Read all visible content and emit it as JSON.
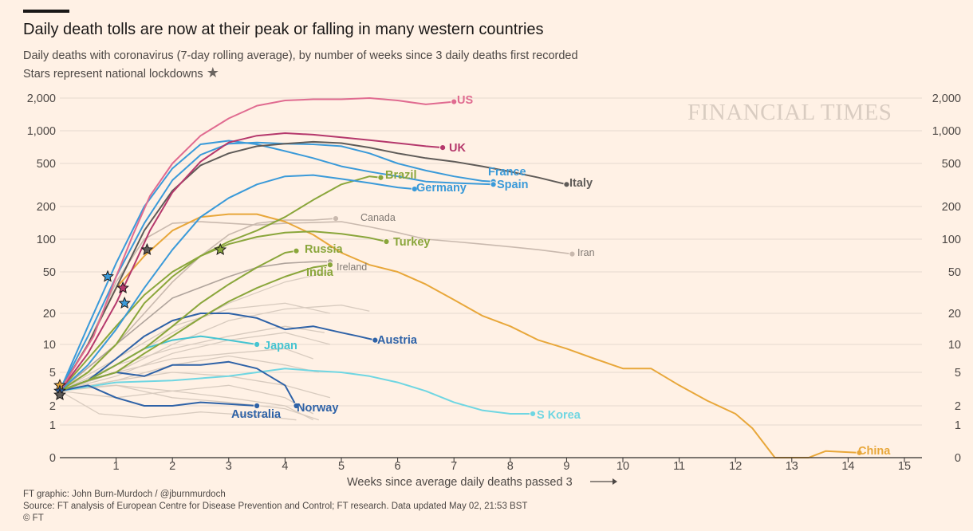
{
  "title": "Daily death tolls are now at their peak or falling in many western countries",
  "subtitle": "Daily deaths with coronavirus (7-day rolling average), by number of weeks since 3 daily deaths first recorded",
  "lockdown_note": "Stars represent national lockdowns",
  "star_glyph": "★",
  "watermark": "FINANCIAL TIMES",
  "footer": {
    "credit": "FT graphic: John Burn-Murdoch / @jburnmurdoch",
    "source": "Source: FT analysis of European Centre for Disease Prevention and Control; FT research. Data updated May 02, 21:53 BST",
    "copyright": "© FT"
  },
  "colors": {
    "background": "#fff1e5",
    "grid": "#e6d9ce",
    "us": "#e06b90",
    "uk": "#b5386c",
    "france": "#3a9ad9",
    "spain": "#3a9ad9",
    "germany": "#3a9ad9",
    "italy": "#5f5b58",
    "brazil": "#8aa63b",
    "turkey": "#8aa63b",
    "russia": "#8aa63b",
    "india": "#8aa63b",
    "canada": "#c9b9ae",
    "iran": "#c9b9ae",
    "ireland": "#b0a49c",
    "austria": "#2e62a7",
    "australia": "#2e62a7",
    "norway": "#2e62a7",
    "japan": "#45c4d1",
    "s_korea": "#6fd6e2",
    "china": "#e8a73a",
    "others": "#d8cbbf"
  },
  "chart_data": {
    "type": "line",
    "title": "",
    "xlabel": "Weeks since average daily deaths passed 3",
    "ylabel": "",
    "yscale": "log",
    "xlim": [
      0,
      15.6
    ],
    "xticks": [
      "1",
      "2",
      "3",
      "4",
      "5",
      "6",
      "7",
      "8",
      "9",
      "10",
      "11",
      "12",
      "13",
      "14",
      "15"
    ],
    "yticks": [
      "0",
      "1",
      "2",
      "5",
      "10",
      "20",
      "50",
      "100",
      "200",
      "500",
      "1,000",
      "2,000"
    ],
    "ytick_values": [
      0,
      1,
      2,
      5,
      10,
      20,
      50,
      100,
      200,
      500,
      1000,
      2000
    ],
    "grid": "horizontal",
    "series": [
      {
        "name": "US",
        "key": "us",
        "label_style": "big",
        "points": [
          [
            0,
            3
          ],
          [
            0.6,
            12
          ],
          [
            1,
            45
          ],
          [
            1.3,
            110
          ],
          [
            1.6,
            250
          ],
          [
            2,
            500
          ],
          [
            2.5,
            900
          ],
          [
            3,
            1300
          ],
          [
            3.5,
            1700
          ],
          [
            4,
            1900
          ],
          [
            4.5,
            1950
          ],
          [
            5,
            1950
          ],
          [
            5.5,
            2000
          ],
          [
            6,
            1900
          ],
          [
            6.5,
            1750
          ],
          [
            7,
            1850
          ]
        ]
      },
      {
        "name": "UK",
        "key": "uk",
        "label_style": "big",
        "points": [
          [
            0,
            3
          ],
          [
            0.5,
            8
          ],
          [
            1,
            25
          ],
          [
            1.3,
            55
          ],
          [
            1.6,
            120
          ],
          [
            2,
            270
          ],
          [
            2.5,
            520
          ],
          [
            3,
            780
          ],
          [
            3.5,
            900
          ],
          [
            4,
            950
          ],
          [
            4.5,
            920
          ],
          [
            5,
            870
          ],
          [
            5.5,
            820
          ],
          [
            6,
            770
          ],
          [
            6.5,
            720
          ],
          [
            6.8,
            700
          ]
        ]
      },
      {
        "name": "France",
        "key": "france",
        "label_style": "big",
        "points": [
          [
            0,
            3
          ],
          [
            0.5,
            12
          ],
          [
            1,
            45
          ],
          [
            1.5,
            140
          ],
          [
            2,
            350
          ],
          [
            2.5,
            600
          ],
          [
            3,
            760
          ],
          [
            3.5,
            780
          ],
          [
            4,
            760
          ],
          [
            4.5,
            750
          ],
          [
            5,
            720
          ],
          [
            5.5,
            620
          ],
          [
            6,
            500
          ],
          [
            6.5,
            430
          ],
          [
            7,
            380
          ],
          [
            7.5,
            345
          ],
          [
            7.7,
            340
          ]
        ]
      },
      {
        "name": "Spain",
        "key": "spain",
        "label_style": "big",
        "points": [
          [
            0,
            3
          ],
          [
            0.5,
            15
          ],
          [
            1,
            60
          ],
          [
            1.5,
            200
          ],
          [
            2,
            450
          ],
          [
            2.5,
            750
          ],
          [
            3,
            810
          ],
          [
            3.5,
            750
          ],
          [
            4,
            650
          ],
          [
            4.5,
            560
          ],
          [
            5,
            470
          ],
          [
            5.5,
            420
          ],
          [
            6,
            380
          ],
          [
            6.5,
            340
          ],
          [
            7,
            330
          ],
          [
            7.7,
            320
          ]
        ]
      },
      {
        "name": "Germany",
        "key": "germany",
        "label_style": "big",
        "points": [
          [
            0,
            3
          ],
          [
            0.5,
            6
          ],
          [
            1,
            14
          ],
          [
            1.5,
            35
          ],
          [
            2,
            80
          ],
          [
            2.5,
            160
          ],
          [
            3,
            240
          ],
          [
            3.5,
            320
          ],
          [
            4,
            380
          ],
          [
            4.5,
            390
          ],
          [
            5,
            360
          ],
          [
            5.5,
            330
          ],
          [
            6,
            300
          ],
          [
            6.3,
            290
          ]
        ]
      },
      {
        "name": "Italy",
        "key": "italy",
        "label_style": "big",
        "points": [
          [
            0,
            3
          ],
          [
            0.5,
            10
          ],
          [
            1,
            35
          ],
          [
            1.5,
            120
          ],
          [
            2,
            280
          ],
          [
            2.5,
            480
          ],
          [
            3,
            620
          ],
          [
            3.5,
            720
          ],
          [
            4,
            760
          ],
          [
            4.5,
            790
          ],
          [
            5,
            770
          ],
          [
            5.5,
            700
          ],
          [
            6,
            620
          ],
          [
            6.5,
            560
          ],
          [
            7,
            520
          ],
          [
            7.5,
            470
          ],
          [
            8,
            420
          ],
          [
            8.5,
            370
          ],
          [
            9,
            320
          ]
        ]
      },
      {
        "name": "Brazil",
        "key": "brazil",
        "label_style": "big",
        "points": [
          [
            0,
            3
          ],
          [
            0.5,
            7
          ],
          [
            1,
            15
          ],
          [
            1.5,
            30
          ],
          [
            2,
            50
          ],
          [
            2.5,
            70
          ],
          [
            3,
            95
          ],
          [
            3.5,
            120
          ],
          [
            4,
            160
          ],
          [
            4.5,
            230
          ],
          [
            5,
            320
          ],
          [
            5.5,
            380
          ],
          [
            5.7,
            370
          ]
        ]
      },
      {
        "name": "Turkey",
        "key": "turkey",
        "label_style": "big",
        "points": [
          [
            0,
            3
          ],
          [
            0.5,
            5
          ],
          [
            1,
            10
          ],
          [
            1.5,
            25
          ],
          [
            2,
            45
          ],
          [
            2.5,
            70
          ],
          [
            3,
            90
          ],
          [
            3.5,
            105
          ],
          [
            4,
            115
          ],
          [
            4.5,
            118
          ],
          [
            5,
            112
          ],
          [
            5.5,
            103
          ],
          [
            5.8,
            95
          ]
        ]
      },
      {
        "name": "Russia",
        "key": "russia",
        "label_style": "big",
        "points": [
          [
            0,
            3
          ],
          [
            0.5,
            4
          ],
          [
            1,
            6
          ],
          [
            1.5,
            9
          ],
          [
            2,
            15
          ],
          [
            2.5,
            25
          ],
          [
            3,
            38
          ],
          [
            3.5,
            55
          ],
          [
            4,
            75
          ],
          [
            4.2,
            78
          ]
        ]
      },
      {
        "name": "India",
        "key": "india",
        "label_style": "big",
        "points": [
          [
            0,
            3
          ],
          [
            0.5,
            4
          ],
          [
            1,
            5
          ],
          [
            1.5,
            8
          ],
          [
            2,
            12
          ],
          [
            2.5,
            18
          ],
          [
            3,
            26
          ],
          [
            3.5,
            35
          ],
          [
            4,
            45
          ],
          [
            4.5,
            55
          ],
          [
            4.8,
            58
          ]
        ]
      },
      {
        "name": "Ireland",
        "key": "ireland",
        "label_style": "small",
        "points": [
          [
            0,
            3
          ],
          [
            1,
            10
          ],
          [
            2,
            28
          ],
          [
            3,
            45
          ],
          [
            3.5,
            55
          ],
          [
            4,
            60
          ],
          [
            4.5,
            62
          ],
          [
            4.8,
            62
          ]
        ]
      },
      {
        "name": "Canada",
        "key": "canada",
        "label_style": "small",
        "points": [
          [
            0,
            3
          ],
          [
            0.5,
            5
          ],
          [
            1,
            10
          ],
          [
            1.5,
            20
          ],
          [
            2,
            40
          ],
          [
            2.5,
            70
          ],
          [
            3,
            110
          ],
          [
            3.5,
            140
          ],
          [
            4,
            150
          ],
          [
            4.5,
            150
          ],
          [
            4.9,
            155
          ]
        ]
      },
      {
        "name": "Iran",
        "key": "iran",
        "label_style": "small",
        "points": [
          [
            0,
            3
          ],
          [
            0.5,
            10
          ],
          [
            1,
            40
          ],
          [
            1.5,
            100
          ],
          [
            2,
            140
          ],
          [
            2.5,
            145
          ],
          [
            3,
            140
          ],
          [
            3.5,
            135
          ],
          [
            4,
            140
          ],
          [
            5,
            145
          ],
          [
            5.5,
            130
          ],
          [
            6,
            115
          ],
          [
            6.5,
            100
          ],
          [
            7,
            95
          ],
          [
            7.5,
            90
          ],
          [
            8,
            85
          ],
          [
            8.5,
            80
          ],
          [
            9.1,
            73
          ]
        ]
      },
      {
        "name": "Austria",
        "key": "austria",
        "label_style": "big",
        "points": [
          [
            0,
            3
          ],
          [
            0.5,
            4
          ],
          [
            1,
            7
          ],
          [
            1.5,
            12
          ],
          [
            2,
            17
          ],
          [
            2.5,
            20
          ],
          [
            3,
            20
          ],
          [
            3.5,
            18
          ],
          [
            4,
            14
          ],
          [
            4.5,
            15
          ],
          [
            5,
            13
          ],
          [
            5.3,
            12
          ],
          [
            5.6,
            11
          ]
        ]
      },
      {
        "name": "Japan",
        "key": "japan",
        "label_style": "big",
        "points": [
          [
            0,
            3
          ],
          [
            0.5,
            4
          ],
          [
            1,
            6
          ],
          [
            1.5,
            9
          ],
          [
            2,
            11
          ],
          [
            2.5,
            12
          ],
          [
            3,
            11
          ],
          [
            3.5,
            10
          ]
        ]
      },
      {
        "name": "Australia",
        "key": "australia",
        "label_style": "big",
        "points": [
          [
            0,
            3
          ],
          [
            0.5,
            3.5
          ],
          [
            1,
            2.5
          ],
          [
            1.5,
            2
          ],
          [
            2,
            2
          ],
          [
            2.5,
            2.2
          ],
          [
            3,
            2.1
          ],
          [
            3.5,
            2
          ]
        ]
      },
      {
        "name": "Norway",
        "key": "norway",
        "label_style": "big",
        "points": [
          [
            0,
            3
          ],
          [
            0.5,
            4
          ],
          [
            1,
            5
          ],
          [
            1.5,
            4.5
          ],
          [
            2,
            6
          ],
          [
            2.5,
            6
          ],
          [
            3,
            6.5
          ],
          [
            3.5,
            5.5
          ],
          [
            4,
            3.5
          ],
          [
            4.2,
            2
          ]
        ]
      },
      {
        "name": "S Korea",
        "key": "s_korea",
        "label_style": "big",
        "points": [
          [
            0,
            3
          ],
          [
            1,
            3.8
          ],
          [
            2,
            4
          ],
          [
            3,
            4.5
          ],
          [
            4,
            5.5
          ],
          [
            4.5,
            5.2
          ],
          [
            5,
            5
          ],
          [
            5.5,
            4.5
          ],
          [
            6,
            3.8
          ],
          [
            6.5,
            3
          ],
          [
            7,
            2.2
          ],
          [
            7.5,
            1.7
          ],
          [
            8,
            1.5
          ],
          [
            8.2,
            1.5
          ],
          [
            8.4,
            1.5
          ]
        ]
      },
      {
        "name": "China",
        "key": "china",
        "label_style": "big",
        "points": [
          [
            0,
            3
          ],
          [
            0.5,
            10
          ],
          [
            1,
            35
          ],
          [
            1.5,
            70
          ],
          [
            2,
            120
          ],
          [
            2.5,
            160
          ],
          [
            3,
            170
          ],
          [
            3.5,
            170
          ],
          [
            4,
            145
          ],
          [
            4.5,
            110
          ],
          [
            5,
            75
          ],
          [
            5.5,
            58
          ],
          [
            6,
            50
          ],
          [
            6.5,
            38
          ],
          [
            7,
            27
          ],
          [
            7.5,
            19
          ],
          [
            8,
            15
          ],
          [
            8.5,
            11
          ],
          [
            9,
            9
          ],
          [
            9.5,
            7
          ],
          [
            10,
            5.5
          ],
          [
            10.5,
            5.5
          ],
          [
            11,
            3.5
          ],
          [
            11.5,
            2.3
          ],
          [
            12,
            1.5
          ],
          [
            12.3,
            0.9
          ],
          [
            12.7,
            0
          ],
          [
            13.3,
            0
          ],
          [
            13.6,
            0.2
          ],
          [
            14.2,
            0.15
          ]
        ]
      }
    ]
  }
}
